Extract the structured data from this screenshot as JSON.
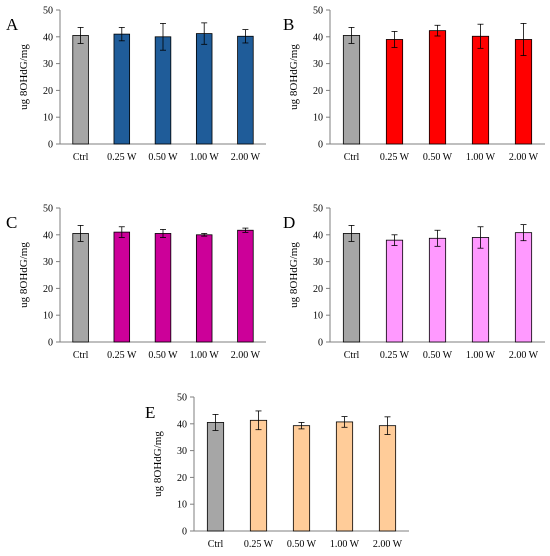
{
  "figure": {
    "background": "#ffffff"
  },
  "chart_data": [
    {
      "type": "bar",
      "panel_label": "A",
      "categories": [
        "Ctrl",
        "0.25 W",
        "0.50 W",
        "1.00 W",
        "2.00 W"
      ],
      "values": [
        40.5,
        41.0,
        40.0,
        41.2,
        40.2
      ],
      "errors": [
        3.0,
        2.5,
        5.0,
        4.0,
        2.5
      ],
      "colors": [
        "#a6a6a6",
        "#1f5c99",
        "#1f5c99",
        "#1f5c99",
        "#1f5c99"
      ],
      "ylabel": "ug 8OHdG/mg",
      "ylim": [
        0,
        50
      ],
      "yticks": [
        0,
        10,
        20,
        30,
        40,
        50
      ],
      "grid": false
    },
    {
      "type": "bar",
      "panel_label": "B",
      "categories": [
        "Ctrl",
        "0.25 W",
        "0.50 W",
        "1.00 W",
        "2.00 W"
      ],
      "values": [
        40.5,
        39.0,
        42.3,
        40.2,
        39.0
      ],
      "errors": [
        3.0,
        3.0,
        2.0,
        4.5,
        6.0
      ],
      "colors": [
        "#a6a6a6",
        "#ff0000",
        "#ff0000",
        "#ff0000",
        "#ff0000"
      ],
      "ylabel": "ug 8OHdG/mg",
      "ylim": [
        0,
        50
      ],
      "yticks": [
        0,
        10,
        20,
        30,
        40,
        50
      ],
      "grid": false
    },
    {
      "type": "bar",
      "panel_label": "C",
      "categories": [
        "Ctrl",
        "0.25 W",
        "0.50 W",
        "1.00 W",
        "2.00 W"
      ],
      "values": [
        40.5,
        41.0,
        40.5,
        40.0,
        41.7
      ],
      "errors": [
        3.0,
        2.0,
        1.5,
        0.5,
        0.8
      ],
      "colors": [
        "#a6a6a6",
        "#cc0099",
        "#cc0099",
        "#cc0099",
        "#cc0099"
      ],
      "ylabel": "ug 8OHdG/mg",
      "ylim": [
        0,
        50
      ],
      "yticks": [
        0,
        10,
        20,
        30,
        40,
        50
      ],
      "grid": false
    },
    {
      "type": "bar",
      "panel_label": "D",
      "categories": [
        "Ctrl",
        "0.25 W",
        "0.50 W",
        "1.00 W",
        "2.00 W"
      ],
      "values": [
        40.5,
        38.0,
        38.7,
        39.0,
        40.8
      ],
      "errors": [
        3.0,
        2.0,
        3.0,
        4.0,
        3.0
      ],
      "colors": [
        "#a6a6a6",
        "#ff99ff",
        "#ff99ff",
        "#ff99ff",
        "#ff99ff"
      ],
      "ylabel": "ug 8OHdG/mg",
      "ylim": [
        0,
        50
      ],
      "yticks": [
        0,
        10,
        20,
        30,
        40,
        50
      ],
      "grid": false
    },
    {
      "type": "bar",
      "panel_label": "E",
      "categories": [
        "Ctrl",
        "0.25 W",
        "0.50 W",
        "1.00 W",
        "2.00 W"
      ],
      "values": [
        40.5,
        41.3,
        39.3,
        40.7,
        39.3
      ],
      "errors": [
        3.0,
        3.5,
        1.2,
        2.0,
        3.3
      ],
      "colors": [
        "#a6a6a6",
        "#ffcc99",
        "#ffcc99",
        "#ffcc99",
        "#ffcc99"
      ],
      "ylabel": "ug 8OHdG/mg",
      "ylim": [
        0,
        50
      ],
      "yticks": [
        0,
        10,
        20,
        30,
        40,
        50
      ],
      "grid": false
    }
  ]
}
